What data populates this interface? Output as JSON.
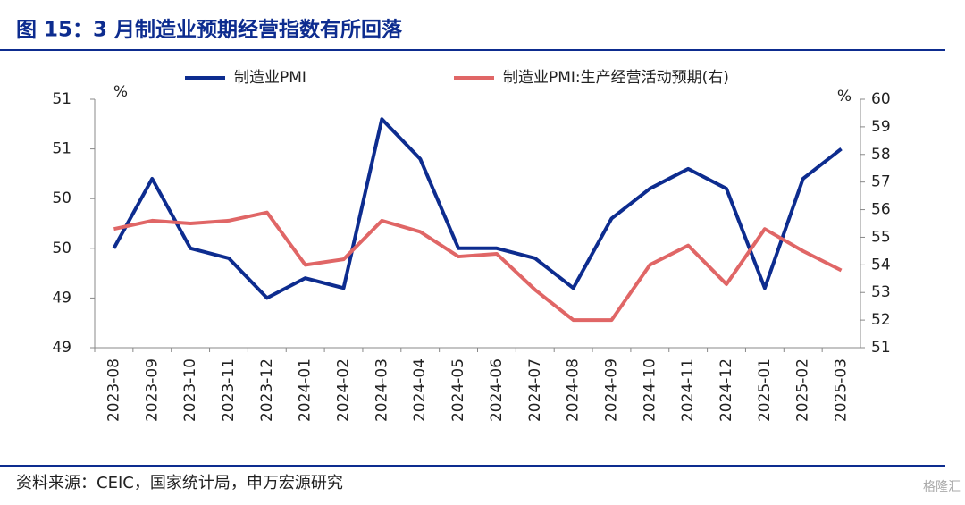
{
  "title": "图 15：3 月制造业预期经营指数有所回落",
  "source": "资料来源：CEIC，国家统计局，申万宏源研究",
  "watermark": "格隆汇",
  "chart_data": {
    "type": "line",
    "categories": [
      "2023-08",
      "2023-09",
      "2023-10",
      "2023-11",
      "2023-12",
      "2024-01",
      "2024-02",
      "2024-03",
      "2024-04",
      "2024-05",
      "2024-06",
      "2024-07",
      "2024-08",
      "2024-09",
      "2024-10",
      "2024-11",
      "2024-12",
      "2025-01",
      "2025-02",
      "2025-03"
    ],
    "series": [
      {
        "name": "制造业PMI",
        "color": "#0d2c8f",
        "values": [
          49.5,
          50.2,
          49.5,
          49.4,
          49.0,
          49.2,
          49.1,
          50.8,
          50.4,
          49.5,
          49.5,
          49.4,
          49.1,
          49.8,
          50.1,
          50.3,
          50.1,
          49.1,
          50.2,
          50.5
        ]
      },
      {
        "name": "制造业PMI:生产经营活动预期(右)",
        "color": "#e06666",
        "axis": "y2",
        "values": [
          55.3,
          55.6,
          55.5,
          55.6,
          55.9,
          54.0,
          54.2,
          55.6,
          55.2,
          54.3,
          54.4,
          53.1,
          52.0,
          52.0,
          54.0,
          54.7,
          53.3,
          55.3,
          54.5,
          53.8
        ]
      }
    ],
    "ylim": [
      48.5,
      51.0
    ],
    "yticks": [
      {
        "value": 48.5,
        "label": "49"
      },
      49,
      {
        "value": 49.5,
        "label": "50"
      },
      50,
      {
        "value": 50.5,
        "label": "51"
      },
      51
    ],
    "y2lim": [
      51,
      60
    ],
    "y2ticks": [
      51,
      52,
      53,
      54,
      55,
      56,
      57,
      58,
      59,
      60
    ],
    "y_label": "%",
    "y2_label": "%"
  }
}
